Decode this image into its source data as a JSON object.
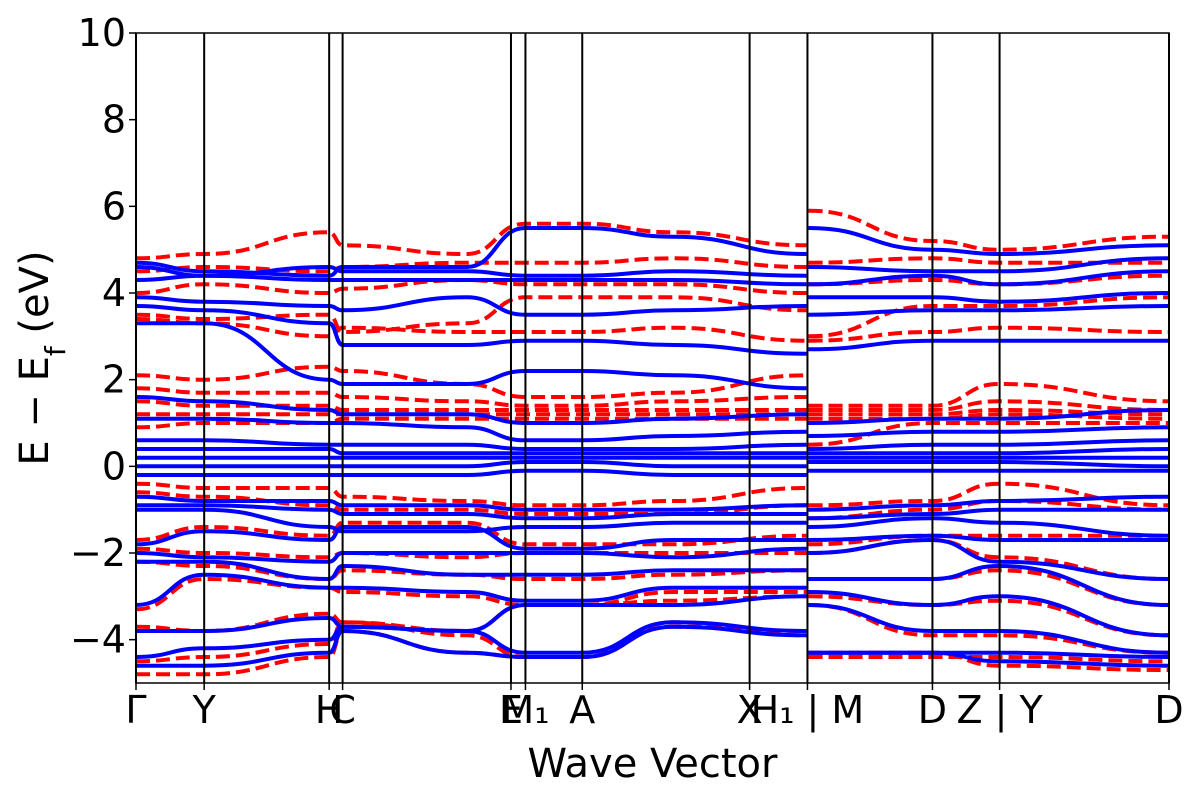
{
  "chart_data": {
    "type": "line",
    "title": "",
    "xlabel": "Wave Vector",
    "ylabel": "E − E_f (eV)",
    "ylabel_main": "E  −  E",
    "ylabel_sub": "f",
    "ylabel_unit": " (eV)",
    "ylim": [
      -5,
      10
    ],
    "yticks": [
      -4,
      -2,
      0,
      2,
      4,
      6,
      8,
      10
    ],
    "ytick_labels": [
      "−4",
      "−2",
      "0",
      "2",
      "4",
      "6",
      "8",
      "10"
    ],
    "xlim": [
      0,
      1
    ],
    "kpoints": [
      {
        "label": "Γ",
        "x": 0.0
      },
      {
        "label": "Y",
        "x": 0.066
      },
      {
        "label": "H",
        "x": 0.187
      },
      {
        "label": "C",
        "x": 0.2
      },
      {
        "label": "E",
        "x": 0.363
      },
      {
        "label": "M₁",
        "x": 0.377
      },
      {
        "label": "A",
        "x": 0.432
      },
      {
        "label": "X",
        "x": 0.594
      },
      {
        "label": "H₁ | M",
        "x": 0.65
      },
      {
        "label": "D",
        "x": 0.771
      },
      {
        "label": "Z | Y",
        "x": 0.836
      },
      {
        "label": "D",
        "x": 1.0
      }
    ],
    "segment_breaks": [
      0.65,
      0.836
    ],
    "colors": {
      "spin_up": "#0000ff",
      "spin_down": "#ff0000"
    },
    "series": [
      {
        "style": "spin_up",
        "values": [
          4.7,
          4.5,
          4.4,
          4.6,
          4.6,
          5.5,
          5.5,
          5.3,
          4.9,
          5.5,
          5.0,
          4.9,
          5.1
        ]
      },
      {
        "style": "spin_up",
        "values": [
          4.6,
          4.4,
          4.6,
          4.5,
          4.5,
          4.4,
          4.4,
          4.5,
          4.4,
          4.6,
          4.5,
          4.5,
          4.8
        ]
      },
      {
        "style": "spin_up",
        "values": [
          4.3,
          4.4,
          4.3,
          4.3,
          4.3,
          4.3,
          4.3,
          4.3,
          4.2,
          4.2,
          4.4,
          4.2,
          4.5
        ]
      },
      {
        "style": "spin_up",
        "values": [
          3.9,
          3.8,
          3.7,
          3.6,
          3.9,
          3.5,
          3.5,
          3.6,
          3.7,
          3.9,
          3.9,
          3.8,
          4.0
        ]
      },
      {
        "style": "spin_up",
        "values": [
          3.7,
          3.6,
          3.3,
          2.8,
          2.8,
          2.9,
          2.9,
          2.8,
          2.6,
          3.5,
          3.6,
          3.6,
          3.7
        ]
      },
      {
        "style": "spin_up",
        "values": [
          3.3,
          3.3,
          2.0,
          1.9,
          1.9,
          2.2,
          2.2,
          2.1,
          1.8,
          2.7,
          2.9,
          2.9,
          2.9
        ]
      },
      {
        "style": "spin_up",
        "values": [
          1.6,
          1.5,
          1.3,
          1.2,
          1.2,
          1.0,
          1.0,
          1.1,
          1.2,
          1.0,
          1.1,
          1.1,
          1.3
        ]
      },
      {
        "style": "spin_up",
        "values": [
          1.1,
          1.1,
          1.0,
          1.0,
          0.9,
          0.6,
          0.6,
          0.7,
          0.8,
          0.7,
          0.8,
          0.8,
          0.9
        ]
      },
      {
        "style": "spin_up",
        "values": [
          0.6,
          0.6,
          0.5,
          0.5,
          0.5,
          0.4,
          0.4,
          0.4,
          0.5,
          0.4,
          0.5,
          0.5,
          0.6
        ]
      },
      {
        "style": "spin_up",
        "values": [
          0.4,
          0.4,
          0.4,
          0.3,
          0.3,
          0.3,
          0.3,
          0.3,
          0.3,
          0.3,
          0.3,
          0.3,
          0.4
        ]
      },
      {
        "style": "spin_up",
        "values": [
          0.2,
          0.2,
          0.2,
          0.2,
          0.2,
          0.2,
          0.2,
          0.2,
          0.2,
          0.2,
          0.2,
          0.2,
          0.2
        ]
      },
      {
        "style": "spin_up",
        "values": [
          0.0,
          0.0,
          0.0,
          0.0,
          0.0,
          0.1,
          0.1,
          0.0,
          0.0,
          0.1,
          0.1,
          0.1,
          0.0
        ]
      },
      {
        "style": "spin_up",
        "values": [
          -0.2,
          -0.2,
          -0.2,
          -0.2,
          -0.2,
          -0.1,
          -0.1,
          -0.2,
          -0.2,
          -0.1,
          -0.1,
          -0.1,
          -0.1
        ]
      },
      {
        "style": "spin_up",
        "values": [
          -0.7,
          -0.8,
          -0.8,
          -0.9,
          -0.9,
          -1.0,
          -1.0,
          -1.0,
          -0.9,
          -1.0,
          -0.9,
          -0.8,
          -0.7
        ]
      },
      {
        "style": "spin_up",
        "values": [
          -0.9,
          -0.9,
          -1.0,
          -1.1,
          -1.1,
          -1.2,
          -1.2,
          -1.1,
          -1.1,
          -1.2,
          -1.1,
          -1.0,
          -1.0
        ]
      },
      {
        "style": "spin_up",
        "values": [
          -1.0,
          -1.0,
          -1.4,
          -1.5,
          -1.5,
          -1.4,
          -1.4,
          -1.3,
          -1.3,
          -1.4,
          -1.2,
          -1.3,
          -1.6
        ]
      },
      {
        "style": "spin_up",
        "values": [
          -1.8,
          -1.5,
          -1.7,
          -1.4,
          -1.4,
          -1.9,
          -1.9,
          -1.7,
          -1.7,
          -1.7,
          -1.6,
          -1.7,
          -1.7
        ]
      },
      {
        "style": "spin_up",
        "values": [
          -2.0,
          -2.1,
          -2.2,
          -2.0,
          -2.0,
          -2.0,
          -2.0,
          -2.1,
          -1.9,
          -2.0,
          -1.7,
          -2.2,
          -2.6
        ]
      },
      {
        "style": "spin_up",
        "values": [
          -2.2,
          -2.2,
          -2.6,
          -2.3,
          -2.5,
          -2.5,
          -2.5,
          -2.4,
          -2.4,
          -2.6,
          -2.6,
          -2.3,
          -3.2
        ]
      },
      {
        "style": "spin_up",
        "values": [
          -3.2,
          -2.5,
          -2.8,
          -2.8,
          -2.9,
          -3.1,
          -3.1,
          -2.8,
          -2.8,
          -2.9,
          -3.2,
          -3.0,
          -3.9
        ]
      },
      {
        "style": "spin_up",
        "values": [
          -3.8,
          -3.8,
          -3.5,
          -3.7,
          -3.8,
          -3.2,
          -3.2,
          -3.2,
          -3.0,
          -3.2,
          -3.8,
          -3.8,
          -4.3
        ]
      },
      {
        "style": "spin_up",
        "values": [
          -4.4,
          -4.2,
          -4.0,
          -3.7,
          -3.8,
          -4.3,
          -4.3,
          -3.6,
          -3.8,
          -4.3,
          -4.3,
          -4.3,
          -4.4
        ]
      },
      {
        "style": "spin_up",
        "values": [
          -4.6,
          -4.6,
          -4.3,
          -3.8,
          -4.3,
          -4.4,
          -4.4,
          -3.7,
          -3.9,
          -4.3,
          -4.3,
          -4.5,
          -4.6
        ]
      },
      {
        "style": "spin_down",
        "values": [
          4.8,
          4.9,
          5.4,
          5.1,
          4.9,
          5.6,
          5.6,
          5.4,
          5.1,
          5.9,
          5.2,
          5.0,
          5.3
        ]
      },
      {
        "style": "spin_down",
        "values": [
          4.5,
          4.6,
          4.5,
          4.6,
          4.7,
          4.7,
          4.7,
          4.8,
          4.6,
          4.7,
          4.8,
          4.7,
          4.7
        ]
      },
      {
        "style": "spin_down",
        "values": [
          4.0,
          4.2,
          4.0,
          4.1,
          4.3,
          4.2,
          4.2,
          4.2,
          4.0,
          4.2,
          4.3,
          4.2,
          4.4
        ]
      },
      {
        "style": "spin_down",
        "values": [
          3.5,
          3.4,
          3.5,
          3.1,
          3.3,
          3.9,
          3.9,
          3.9,
          3.6,
          3.0,
          3.7,
          3.7,
          3.9
        ]
      },
      {
        "style": "spin_down",
        "values": [
          3.4,
          3.3,
          3.0,
          3.2,
          3.1,
          3.1,
          3.1,
          3.2,
          2.9,
          2.9,
          3.1,
          3.2,
          3.1
        ]
      },
      {
        "style": "spin_down",
        "values": [
          2.1,
          2.0,
          2.3,
          2.2,
          1.9,
          1.6,
          1.6,
          1.7,
          2.1,
          1.4,
          1.4,
          1.9,
          1.5
        ]
      },
      {
        "style": "spin_down",
        "values": [
          1.8,
          1.7,
          1.7,
          1.6,
          1.5,
          1.4,
          1.4,
          1.5,
          1.6,
          1.3,
          1.3,
          1.5,
          1.3
        ]
      },
      {
        "style": "spin_down",
        "values": [
          1.5,
          1.4,
          1.4,
          1.3,
          1.3,
          1.3,
          1.3,
          1.3,
          1.3,
          1.2,
          1.2,
          1.3,
          1.2
        ]
      },
      {
        "style": "spin_down",
        "values": [
          1.2,
          1.2,
          1.2,
          1.2,
          1.2,
          1.2,
          1.2,
          1.2,
          1.2,
          1.1,
          1.1,
          1.2,
          1.1
        ]
      },
      {
        "style": "spin_down",
        "values": [
          0.9,
          1.0,
          1.0,
          1.1,
          1.1,
          1.1,
          1.1,
          1.1,
          1.1,
          0.5,
          1.0,
          1.0,
          1.0
        ]
      },
      {
        "style": "spin_down",
        "values": [
          -0.4,
          -0.5,
          -0.5,
          -0.7,
          -0.8,
          -0.9,
          -0.9,
          -0.8,
          -0.5,
          -0.9,
          -0.8,
          -0.4,
          -0.9
        ]
      },
      {
        "style": "spin_down",
        "values": [
          -0.6,
          -0.7,
          -0.9,
          -1.0,
          -1.0,
          -1.1,
          -1.1,
          -1.1,
          -0.9,
          -1.2,
          -1.0,
          -0.8,
          -1.0
        ]
      },
      {
        "style": "spin_down",
        "values": [
          -1.7,
          -1.4,
          -1.6,
          -1.3,
          -1.3,
          -1.8,
          -1.8,
          -1.8,
          -1.6,
          -1.8,
          -1.6,
          -1.6,
          -1.6
        ]
      },
      {
        "style": "spin_down",
        "values": [
          -1.9,
          -2.0,
          -2.1,
          -2.0,
          -2.1,
          -2.0,
          -2.0,
          -2.0,
          -2.0,
          -2.0,
          -1.7,
          -2.1,
          -2.6
        ]
      },
      {
        "style": "spin_down",
        "values": [
          -2.2,
          -2.3,
          -2.6,
          -2.4,
          -2.5,
          -2.6,
          -2.6,
          -2.5,
          -2.4,
          -2.6,
          -2.6,
          -2.4,
          -3.2
        ]
      },
      {
        "style": "spin_down",
        "values": [
          -3.3,
          -2.6,
          -2.8,
          -2.9,
          -3.0,
          -3.2,
          -3.2,
          -2.9,
          -2.9,
          -3.0,
          -3.2,
          -3.1,
          -3.9
        ]
      },
      {
        "style": "spin_down",
        "values": [
          -3.7,
          -3.8,
          -3.4,
          -3.6,
          -3.8,
          -3.2,
          -3.2,
          -3.1,
          -3.0,
          -3.2,
          -3.9,
          -3.9,
          -4.3
        ]
      },
      {
        "style": "spin_down",
        "values": [
          -4.5,
          -4.4,
          -4.1,
          -3.6,
          -3.9,
          -4.4,
          -4.4,
          -3.6,
          -3.9,
          -4.4,
          -4.4,
          -4.4,
          -4.5
        ]
      },
      {
        "style": "spin_down",
        "values": [
          -4.8,
          -4.8,
          -4.4,
          -3.8,
          -4.3,
          -4.4,
          -4.4,
          -3.7,
          -3.8,
          -4.3,
          -4.3,
          -4.6,
          -4.7
        ]
      }
    ],
    "sample_x": [
      0.0,
      0.066,
      0.187,
      0.2,
      0.32,
      0.377,
      0.432,
      0.52,
      0.649,
      0.651,
      0.771,
      0.835,
      1.0
    ]
  }
}
